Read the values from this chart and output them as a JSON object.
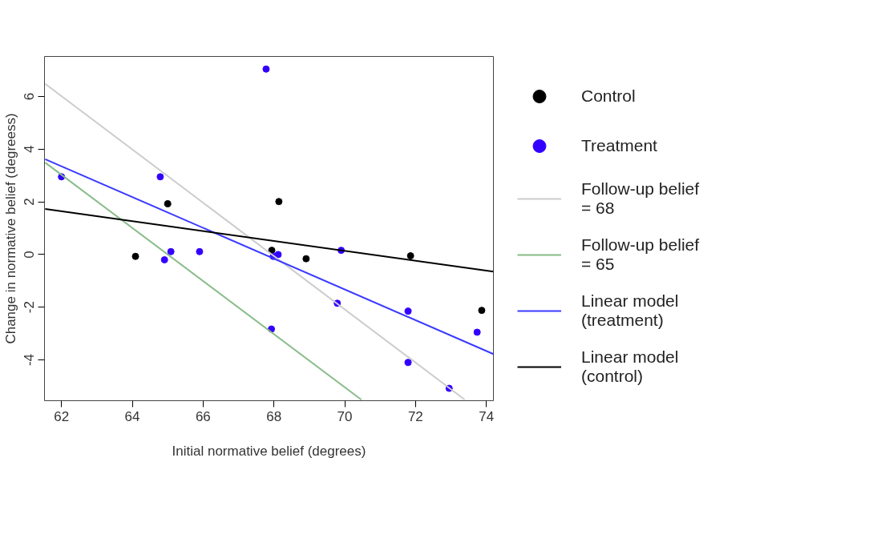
{
  "chart_data": {
    "type": "scatter",
    "xlabel": "Initial normative belief (degrees)",
    "ylabel": "Change in normative belief (degreess)",
    "xlim": [
      61.52,
      74.2
    ],
    "ylim": [
      -5.55,
      7.52
    ],
    "xticks": [
      62,
      64,
      66,
      68,
      70,
      72,
      74
    ],
    "yticks": [
      -4,
      -2,
      0,
      2,
      4,
      6
    ],
    "grid": false,
    "legend": "right",
    "marker": "circle",
    "series": [
      {
        "name": "Control",
        "color": "#000000",
        "x": [
          65.0,
          64.09,
          68.14,
          67.94,
          68.91,
          71.86,
          73.87
        ],
        "values": [
          1.93,
          -0.07,
          2.01,
          0.16,
          -0.16,
          -0.05,
          -2.12
        ]
      },
      {
        "name": "Treatment",
        "color": "#3300ff",
        "x": [
          62.0,
          64.79,
          64.91,
          65.09,
          65.9,
          67.78,
          68.12,
          67.98,
          69.9,
          69.79,
          67.93,
          71.79,
          73.74,
          71.79,
          72.95
        ],
        "values": [
          2.95,
          2.95,
          -0.2,
          0.11,
          0.11,
          7.04,
          0.0,
          -0.07,
          0.16,
          -1.85,
          -2.83,
          -2.15,
          -2.95,
          -4.1,
          -5.08
        ]
      },
      {
        "name": "Follow-up belief = 68",
        "type": "line",
        "marker": "none",
        "color": "#cccccc",
        "x": [
          61.54,
          73.39
        ],
        "values": [
          6.48,
          -5.51
        ]
      },
      {
        "name": "Follow-up belief = 65",
        "type": "line",
        "marker": "none",
        "color": "#88bb88",
        "x": [
          61.54,
          70.47
        ],
        "values": [
          3.49,
          -5.51
        ]
      },
      {
        "name": "Linear model (treatment)",
        "type": "line",
        "marker": "none",
        "color": "#3a3aff",
        "x": [
          61.54,
          74.2
        ],
        "values": [
          3.62,
          -3.78
        ]
      },
      {
        "name": "Linear model (control)",
        "type": "line",
        "marker": "none",
        "color": "#000000",
        "x": [
          61.54,
          74.2
        ],
        "values": [
          1.73,
          -0.65
        ]
      }
    ]
  }
}
